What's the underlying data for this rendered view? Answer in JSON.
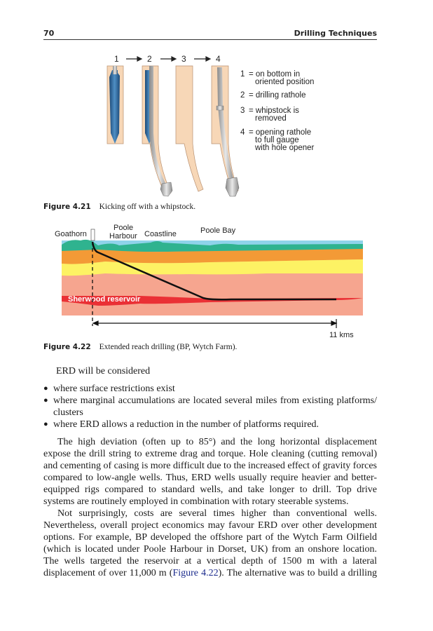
{
  "header": {
    "page_number": "70",
    "running_title": "Drilling Techniques"
  },
  "figure_4_21": {
    "steps": [
      "1",
      "2",
      "3",
      "4"
    ],
    "legend": [
      {
        "num": "1",
        "text": [
          "= on bottom in",
          "oriented position"
        ]
      },
      {
        "num": "2",
        "text": [
          "= drilling rathole"
        ]
      },
      {
        "num": "3",
        "text": [
          "= whipstock is",
          "removed"
        ]
      },
      {
        "num": "4",
        "text": [
          "= opening rathole",
          "to full gauge",
          "with hole opener"
        ]
      }
    ],
    "caption_label": "Figure 4.21",
    "caption_text": "Kicking off with a whipstock."
  },
  "figure_4_22": {
    "labels": {
      "goathorn": "Goathorn",
      "poole_harbour_1": "Poole",
      "poole_harbour_2": "Harbour",
      "coastline": "Coastline",
      "poole_bay": "Poole Bay",
      "reservoir": "Sherwood reservoir",
      "distance": "11 kms"
    },
    "colors": {
      "sky": "#8fd3ea",
      "green": "#2fb38f",
      "orange": "#f39a36",
      "yellow": "#fdf264",
      "salmon": "#f6a58f",
      "reservoir": "#ea3035"
    },
    "caption_label": "Figure 4.22",
    "caption_text": "Extended reach drilling (BP, Wytch Farm)."
  },
  "body": {
    "intro": "ERD will be considered",
    "bullets": [
      [
        "where surface restrictions exist"
      ],
      [
        "where marginal accumulations are located several miles from existing platforms/",
        "clusters"
      ],
      [
        "where ERD allows a reduction in the number of platforms required."
      ]
    ],
    "para1": [
      "The high deviation (often up to 85°) and the long horizontal displacement",
      "expose the drill string to extreme drag and torque. Hole cleaning (cutting removal)",
      "and cementing of casing is more difficult due to the increased effect of gravity forces",
      "compared to low-angle wells. Thus, ERD wells usually require heavier and better-",
      "equipped rigs compared to standard wells, and take longer to drill. Top drive",
      "systems are routinely employed in combination with rotary steerable systems."
    ],
    "para2": [
      "Not surprisingly, costs are several times higher than conventional wells.",
      "Nevertheless, overall project economics may favour ERD over other development",
      "options. For example, BP developed the offshore part of the Wytch Farm Oilfield",
      "(which is located under Poole Harbour in Dorset, UK) from an onshore location.",
      "The wells targeted the reservoir at a vertical depth of 1500 m with a lateral"
    ],
    "last_line": {
      "before": "displacement of over 11,000 m (",
      "link": "Figure 4.22",
      "after": "). The alternative was to build a drilling"
    }
  }
}
